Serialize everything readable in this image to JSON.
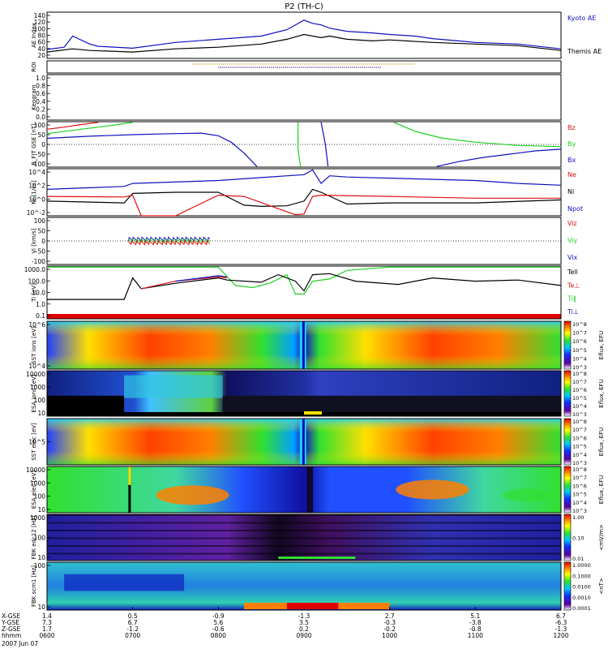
{
  "chart_data": {
    "type": "line",
    "title": "P2 (TH-C)",
    "date_label": "2007 Jun 07",
    "x_axis": {
      "row_labels": [
        "X-GSE",
        "Y-GSE",
        "Z-GSE",
        "hhmm"
      ],
      "ticks": [
        {
          "x": "1.4",
          "y": "7.3",
          "z": "1.7",
          "t": "0600"
        },
        {
          "x": "0.5",
          "y": "6.7",
          "z": "-1.2",
          "t": "0700"
        },
        {
          "x": "-0.9",
          "y": "5.6",
          "z": "-0.6",
          "t": "0800"
        },
        {
          "x": "-1.3",
          "y": "3.5",
          "z": "0.2",
          "t": "0900"
        },
        {
          "x": "2.7",
          "y": "-0.3",
          "z": "-0.2",
          "t": "1000"
        },
        {
          "x": "5.1",
          "y": "-3.8",
          "z": "-0.8",
          "t": "1100"
        },
        {
          "x": "6.7",
          "y": "-6.3",
          "z": "-1.3",
          "t": "1200"
        }
      ]
    },
    "panels": [
      {
        "id": "ae",
        "ylabel": "AE Index",
        "yticks": [
          "20",
          "40",
          "60",
          "80",
          "100",
          "120",
          "140"
        ],
        "ylim": [
          0,
          145
        ],
        "legend": [
          {
            "label": "Kyoto AE",
            "color": "#1010c0"
          },
          {
            "label": "Themis AE",
            "color": "#000000"
          }
        ],
        "series": [
          {
            "name": "Kyoto AE",
            "color": "#1010c0",
            "x": [
              0,
              0.2,
              0.3,
              0.5,
              0.6,
              1,
              1.5,
              2,
              2.5,
              2.8,
              3,
              3.1,
              3.2,
              3.3,
              3.5,
              3.8,
              4,
              4.3,
              4.5,
              4.8,
              5,
              5.5,
              6
            ],
            "y": [
              28,
              35,
              70,
              45,
              38,
              32,
              50,
              60,
              70,
              90,
              120,
              110,
              105,
              95,
              85,
              80,
              75,
              70,
              62,
              55,
              50,
              45,
              30
            ]
          },
          {
            "name": "Themis AE",
            "color": "#000000",
            "x": [
              0,
              0.3,
              0.5,
              1,
              1.5,
              2,
              2.5,
              2.8,
              3,
              3.2,
              3.3,
              3.5,
              3.8,
              4,
              4.5,
              5,
              5.5,
              6
            ],
            "y": [
              20,
              30,
              25,
              20,
              30,
              35,
              45,
              60,
              75,
              65,
              70,
              60,
              55,
              58,
              50,
              45,
              40,
              25
            ]
          }
        ]
      },
      {
        "id": "roi",
        "ylabel": "ROI",
        "yticks": [],
        "bands": [
          {
            "x0": 1.7,
            "x1": 4.3,
            "color": "#c8a020"
          },
          {
            "x0": 2.0,
            "x1": 3.9,
            "color": "#602080"
          }
        ]
      },
      {
        "id": "keogram",
        "ylabel": "Keogram",
        "yticks": [
          "0.0",
          "0.2",
          "0.4",
          "0.6",
          "0.8",
          "1.0"
        ],
        "ylim": [
          0,
          1
        ]
      },
      {
        "id": "bfield",
        "ylabel": "B_FIT GSE [nT]",
        "yticks": [
          "-100",
          "-50",
          "0",
          "50",
          "100"
        ],
        "ylim": [
          -105,
          105
        ],
        "legend": [
          {
            "label": "Bz",
            "color": "#e01010"
          },
          {
            "label": "By",
            "color": "#20d020"
          },
          {
            "label": "Bx",
            "color": "#1010c0"
          }
        ],
        "series": [
          {
            "name": "Bz",
            "color": "#e01010",
            "x": [
              0,
              0.2,
              0.4,
              0.6
            ],
            "y": [
              70,
              80,
              92,
              102
            ]
          },
          {
            "name": "By",
            "color": "#20d020",
            "x": [
              0,
              0.4,
              0.8,
              1.0
            ],
            "y": [
              50,
              70,
              90,
              102
            ]
          },
          {
            "name": "Bx",
            "color": "#1010c0",
            "x": [
              0,
              0.5,
              1,
              1.5,
              1.8,
              2.0,
              2.15,
              2.3,
              2.45
            ],
            "y": [
              28,
              38,
              45,
              50,
              52,
              40,
              10,
              -40,
              -102
            ]
          },
          {
            "name": "By",
            "color": "#20d020",
            "x": [
              2.93,
              2.93,
              2.96
            ],
            "y": [
              102,
              -20,
              -102
            ]
          },
          {
            "name": "Bx",
            "color": "#1010c0",
            "x": [
              3.2,
              3.25,
              3.28
            ],
            "y": [
              102,
              0,
              -102
            ]
          },
          {
            "name": "By",
            "color": "#20d020",
            "x": [
              4.05,
              4.3,
              4.6,
              5,
              5.5,
              6
            ],
            "y": [
              102,
              60,
              30,
              10,
              -5,
              -10
            ]
          },
          {
            "name": "Bx",
            "color": "#1010c0",
            "x": [
              4.55,
              4.8,
              5.1,
              5.4,
              5.7,
              6
            ],
            "y": [
              -102,
              -80,
              -60,
              -45,
              -30,
              -22
            ]
          }
        ]
      },
      {
        "id": "density",
        "ylabel": "Ni [1/cc]",
        "yticks": [
          "10^-2",
          "10^0",
          "10^2",
          "10^4"
        ],
        "ylim": [
          -3,
          5
        ],
        "legend": [
          {
            "label": "Ne",
            "color": "#e01010"
          },
          {
            "label": "Ni",
            "color": "#000000"
          },
          {
            "label": "Npot",
            "color": "#1010c0"
          }
        ],
        "series": [
          {
            "name": "Npot",
            "color": "#1010c0",
            "x": [
              0,
              0.9,
              1,
              2,
              2.5,
              3,
              3.1,
              3.2,
              3.3,
              3.5,
              4,
              5,
              5.5,
              6
            ],
            "y": [
              1.5,
              2.0,
              2.5,
              3.0,
              3.5,
              4.0,
              4.8,
              2.5,
              3.8,
              3.6,
              3.4,
              3.0,
              2.5,
              2.2
            ]
          },
          {
            "name": "Ni",
            "color": "#000000",
            "x": [
              0,
              0.9,
              1,
              1.5,
              2,
              2.3,
              2.5,
              2.8,
              3,
              3.1,
              3.2,
              3.5,
              4,
              5,
              6
            ],
            "y": [
              -0.5,
              -0.8,
              0.8,
              1.0,
              1.0,
              -1.2,
              -1.4,
              -1.3,
              -0.5,
              1.5,
              1.0,
              -1.0,
              -0.8,
              -0.8,
              -0.3
            ]
          },
          {
            "name": "Ne",
            "color": "#e01010",
            "x": [
              0,
              0.9,
              1.0,
              1.1,
              1.2,
              1.5,
              2.0,
              2.3,
              2.7,
              2.9,
              3.0,
              3.1,
              3.2,
              4,
              5,
              6
            ],
            "y": [
              0.3,
              0.2,
              0.5,
              -3.0,
              -3.0,
              -3.0,
              0.5,
              0.3,
              -1.8,
              -2.8,
              -2.7,
              0.3,
              0.5,
              0.3,
              0.0,
              0.0
            ]
          }
        ]
      },
      {
        "id": "velocity",
        "ylabel": "Vi [km/s]",
        "yticks": [
          "-100",
          "-50",
          "0",
          "50",
          "100"
        ],
        "ylim": [
          -130,
          130
        ],
        "legend": [
          {
            "label": "Viz",
            "color": "#e01010"
          },
          {
            "label": "Viy",
            "color": "#20d020"
          },
          {
            "label": "Vix",
            "color": "#1010c0"
          }
        ],
        "bursts": [
          {
            "x0": 0.95,
            "x1": 1.9,
            "levels": [
              10,
              0,
              -10
            ],
            "colors": [
              "#1010c0",
              "#20d020",
              "#e01010"
            ]
          }
        ]
      },
      {
        "id": "temperature",
        "ylabel": "Ti [eV]",
        "yticks": [
          "0.1",
          "1.0",
          "10.0",
          "100.0",
          "1000.0"
        ],
        "ylim": [
          -1.3,
          3.6
        ],
        "legend": [
          {
            "label": "Tell",
            "color": "#000000"
          },
          {
            "label": "Te⊥",
            "color": "#e01010"
          },
          {
            "label": "Ti‖",
            "color": "#20d020"
          },
          {
            "label": "Ti⊥",
            "color": "#1010c0"
          }
        ],
        "series": [
          {
            "name": "Ti‖",
            "color": "#20d020",
            "x": [
              0,
              1,
              1.5,
              1.8,
              2.0,
              2.2,
              2.4,
              2.6,
              2.8,
              2.9,
              3.0,
              3.1,
              3.3,
              3.5,
              4,
              5,
              6
            ],
            "y": [
              3.5,
              3.5,
              3.5,
              3.5,
              3.5,
              1.8,
              1.6,
              2.0,
              2.8,
              1.0,
              1.0,
              2.2,
              2.4,
              3.2,
              3.5,
              3.5,
              3.5
            ]
          },
          {
            "name": "Tell",
            "color": "#000000",
            "x": [
              0,
              0.9,
              1.0,
              1.1,
              1.5,
              2.0,
              2.1,
              2.5,
              2.7,
              2.9,
              3.0,
              3.1,
              3.3,
              3.6,
              4.1,
              4.5,
              5,
              5.5,
              6
            ],
            "y": [
              0.5,
              0.5,
              2.5,
              1.5,
              2.0,
              2.5,
              2.3,
              2.1,
              2.8,
              2.2,
              1.3,
              2.8,
              2.9,
              2.2,
              1.9,
              2.5,
              2.2,
              2.3,
              1.8
            ]
          },
          {
            "name": "Te⊥",
            "color": "#e01010",
            "x": [
              1.1,
              1.5,
              2.0,
              2.1
            ],
            "y": [
              1.5,
              2.2,
              2.6,
              2.5
            ]
          },
          {
            "name": "Ti⊥",
            "color": "#1010c0",
            "x": [
              1.5,
              1.8,
              2.0,
              2.1
            ],
            "y": [
              2.2,
              2.5,
              2.7,
              2.6
            ]
          }
        ]
      },
      {
        "id": "sst_ion",
        "ylabel": "SST ions [eV]",
        "yticks": [
          "10^4",
          "10^6"
        ],
        "colorbar": {
          "label": "Eflux, EFU",
          "ticks": [
            "10^3",
            "10^4",
            "10^5",
            "10^6",
            "10^7",
            "10^8"
          ]
        }
      },
      {
        "id": "esa_ion",
        "ylabel": "ESA ions [eV]",
        "yticks": [
          "10",
          "100",
          "1000",
          "10000"
        ],
        "colorbar": {
          "label": "Eflux, EFU",
          "ticks": [
            "10^3",
            "10^4",
            "10^5",
            "10^6",
            "10^7",
            "10^8"
          ]
        }
      },
      {
        "id": "sst_elec",
        "ylabel": "SST elec [eV]",
        "yticks": [
          "10^5"
        ],
        "colorbar": {
          "label": "Eflux, EFU",
          "ticks": [
            "10^3",
            "10^4",
            "10^5",
            "10^6",
            "10^7",
            "10^8"
          ]
        }
      },
      {
        "id": "esa_elec",
        "ylabel": "ESA elec [eV]",
        "yticks": [
          "10",
          "100",
          "1000",
          "10000"
        ],
        "colorbar": {
          "label": "Eflux, EFU",
          "ticks": [
            "10^3",
            "10^4",
            "10^5",
            "10^6",
            "10^7",
            "10^8"
          ]
        }
      },
      {
        "id": "fbk_edc",
        "ylabel": "FBK edc12 [Hz]",
        "yticks": [
          "10",
          "100",
          "1000"
        ],
        "colorbar": {
          "label": "<mV/m>",
          "ticks": [
            "0.01",
            "0.10",
            "1.00"
          ]
        }
      },
      {
        "id": "fbk_scm",
        "ylabel": "FBK scm1 [Hz]",
        "yticks": [
          "10",
          "100"
        ],
        "colorbar": {
          "label": "<nT>",
          "ticks": [
            "0.0001",
            "0.0010",
            "0.0100",
            "0.1000",
            "1.0000"
          ]
        }
      }
    ]
  }
}
